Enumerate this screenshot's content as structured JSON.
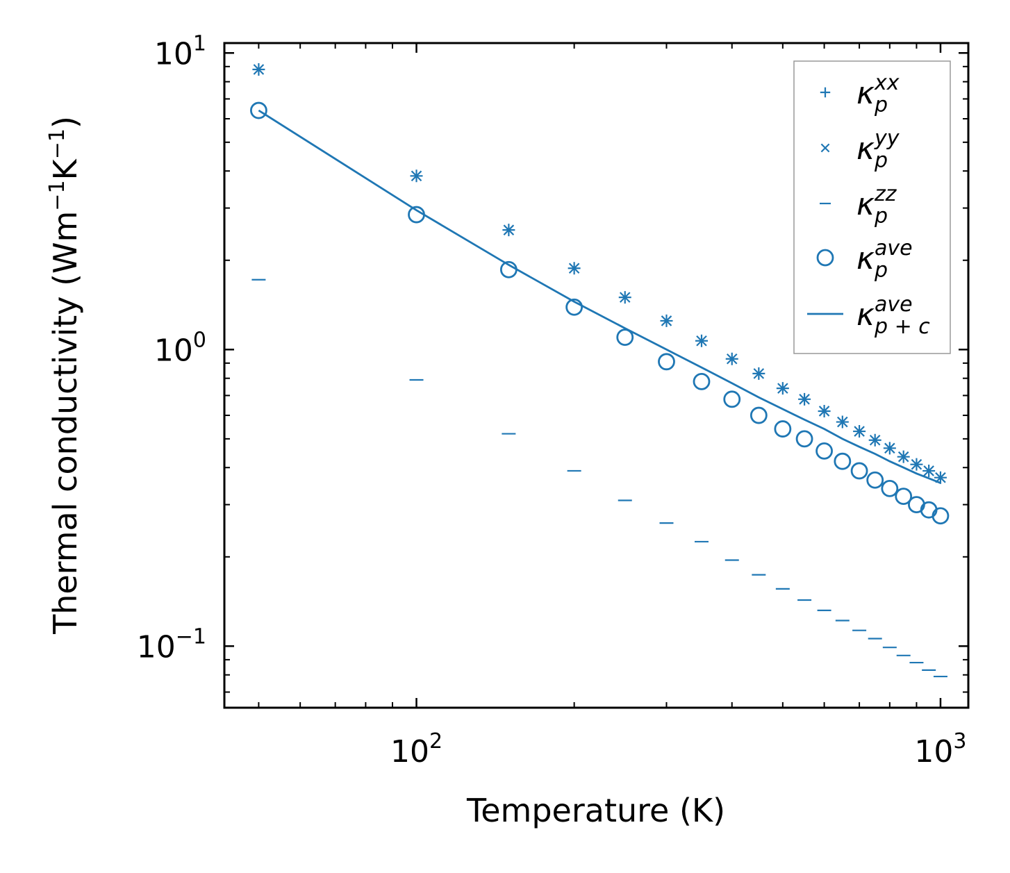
{
  "chart_data": {
    "type": "scatter",
    "title": "",
    "xlabel": "Temperature (K)",
    "ylabel": "Thermal conductivity (Wm",
    "ylabel_sup1": "−1",
    "ylabel_mid": "K",
    "ylabel_sup2": "−1",
    "ylabel_end": ")",
    "xscale": "log",
    "yscale": "log",
    "xlim": [
      43,
      1130
    ],
    "ylim": [
      0.062,
      10.8
    ],
    "x_ticks": [
      {
        "value": 100,
        "base": "10",
        "exp": "2"
      },
      {
        "value": 1000,
        "base": "10",
        "exp": "3"
      }
    ],
    "y_ticks": [
      {
        "value": 0.1,
        "base": "10",
        "exp": "−1"
      },
      {
        "value": 1,
        "base": "10",
        "exp": "0"
      },
      {
        "value": 10,
        "base": "10",
        "exp": "1"
      }
    ],
    "legend_position": "top-right",
    "color": "#1f77b4",
    "x": [
      50,
      100,
      150,
      200,
      250,
      300,
      350,
      400,
      450,
      500,
      550,
      600,
      650,
      700,
      750,
      800,
      850,
      900,
      950,
      1000
    ],
    "series": [
      {
        "name": "κ_p^xx",
        "label_base": "κ",
        "label_sub": "p",
        "label_sup": "xx",
        "marker": "plus",
        "values": [
          8.8,
          3.85,
          2.53,
          1.88,
          1.5,
          1.25,
          1.07,
          0.93,
          0.83,
          0.74,
          0.68,
          0.62,
          0.57,
          0.53,
          0.495,
          0.465,
          0.435,
          0.41,
          0.39,
          0.37
        ]
      },
      {
        "name": "κ_p^yy",
        "label_base": "κ",
        "label_sub": "p",
        "label_sup": "yy",
        "marker": "x",
        "values": [
          8.8,
          3.85,
          2.53,
          1.88,
          1.5,
          1.25,
          1.07,
          0.93,
          0.83,
          0.74,
          0.68,
          0.62,
          0.57,
          0.53,
          0.495,
          0.465,
          0.435,
          0.41,
          0.39,
          0.37
        ]
      },
      {
        "name": "κ_p^zz",
        "label_base": "κ",
        "label_sub": "p",
        "label_sup": "zz",
        "marker": "hline",
        "values": [
          1.72,
          0.79,
          0.52,
          0.39,
          0.31,
          0.26,
          0.225,
          0.195,
          0.174,
          0.156,
          0.143,
          0.132,
          0.122,
          0.113,
          0.106,
          0.099,
          0.093,
          0.088,
          0.083,
          0.079
        ]
      },
      {
        "name": "κ_p^ave",
        "label_base": "κ",
        "label_sub": "p",
        "label_sup": "ave",
        "marker": "circle",
        "values": [
          6.4,
          2.85,
          1.86,
          1.39,
          1.1,
          0.91,
          0.78,
          0.68,
          0.6,
          0.54,
          0.5,
          0.455,
          0.42,
          0.39,
          0.363,
          0.34,
          0.32,
          0.3,
          0.288,
          0.275
        ]
      },
      {
        "name": "κ_p+c^ave",
        "label_base": "κ",
        "label_sub": "p + c",
        "label_sup": "ave",
        "marker": "line",
        "values": [
          6.4,
          2.95,
          1.93,
          1.45,
          1.18,
          1.0,
          0.87,
          0.77,
          0.69,
          0.63,
          0.58,
          0.54,
          0.5,
          0.47,
          0.445,
          0.42,
          0.4,
          0.382,
          0.368,
          0.355
        ]
      }
    ]
  }
}
